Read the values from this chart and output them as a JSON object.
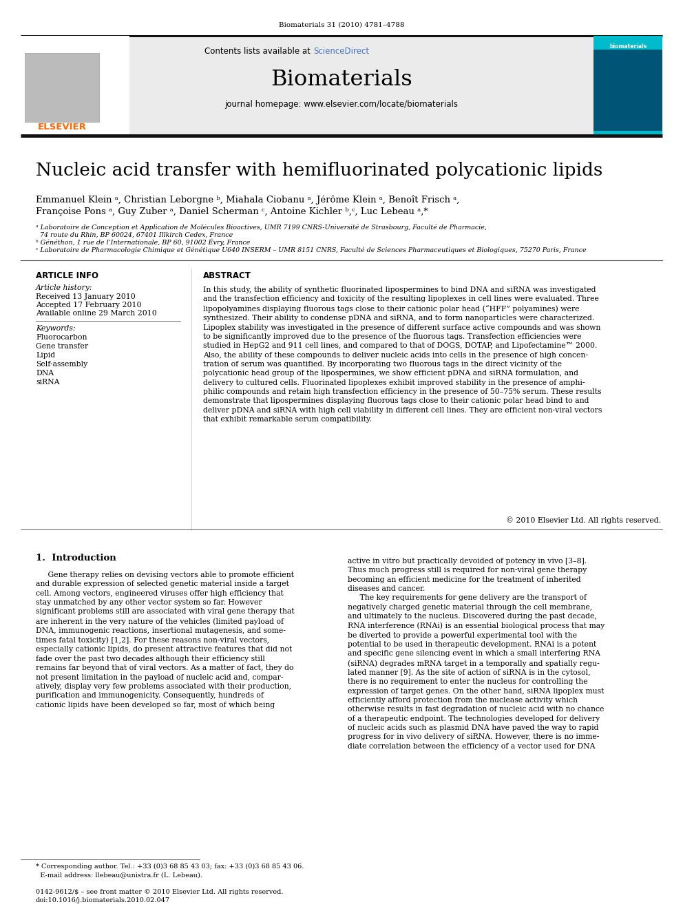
{
  "journal_ref": "Biomaterials 31 (2010) 4781–4788",
  "contents_line": "Contents lists available at",
  "sciencedirect": "ScienceDirect",
  "journal_name": "Biomaterials",
  "journal_homepage": "journal homepage: www.elsevier.com/locate/biomaterials",
  "title": "Nucleic acid transfer with hemifluorinated polycationic lipids",
  "authors_line1": "Emmanuel Klein ᵃ, Christian Leborgne ᵇ, Miahala Ciobanu ᵃ, Jérôme Klein ᵃ, Benoît Frisch ᵃ,",
  "authors_line2": "Françoise Pons ᵃ, Guy Zuber ᵃ, Daniel Scherman ᶜ, Antoine Kichler ᵇ,ᶜ, Luc Lebeau ᵃ,*",
  "affil_a": "ᵃ Laboratoire de Conception et Application de Molécules Bioactives, UMR 7199 CNRS-Université de Strasbourg, Faculté de Pharmacie,",
  "affil_a2": "  74 route du Rhin, BP 60024, 67401 Illkirch Cedex, France",
  "affil_b": "ᵇ Généthon, 1 rue de l’Internationale, BP 60, 91002 Évry, France",
  "affil_c": "ᶜ Laboratoire de Pharmacologie Chimique et Génétique U640 INSERM – UMR 8151 CNRS, Faculté de Sciences Pharmaceutiques et Biologiques, 75270 Paris, France",
  "article_info_header": "ARTICLE INFO",
  "article_history_header": "Article history:",
  "received": "Received 13 January 2010",
  "accepted": "Accepted 17 February 2010",
  "available": "Available online 29 March 2010",
  "keywords_header": "Keywords:",
  "keywords": [
    "Fluorocarbon",
    "Gene transfer",
    "Lipid",
    "Self-assembly",
    "DNA",
    "siRNA"
  ],
  "abstract_header": "ABSTRACT",
  "abstract_text": "In this study, the ability of synthetic fluorinated lipospermines to bind DNA and siRNA was investigated\nand the transfection efficiency and toxicity of the resulting lipoplexes in cell lines were evaluated. Three\nlipopolyamines displaying fluorous tags close to their cationic polar head (“HFF” polyamines) were\nsynthesized. Their ability to condense pDNA and siRNA, and to form nanoparticles were characterized.\nLipoplex stability was investigated in the presence of different surface active compounds and was shown\nto be significantly improved due to the presence of the fluorous tags. Transfection efficiencies were\nstudied in HepG2 and 911 cell lines, and compared to that of DOGS, DOTAP, and Lipofectamine™ 2000.\nAlso, the ability of these compounds to deliver nucleic acids into cells in the presence of high concen-\ntration of serum was quantified. By incorporating two fluorous tags in the direct vicinity of the\npolycationic head group of the lipospermines, we show efficient pDNA and siRNA formulation, and\ndelivery to cultured cells. Fluorinated lipoplexes exhibit improved stability in the presence of amphi-\nphilic compounds and retain high transfection efficiency in the presence of 50–75% serum. These results\ndemonstrate that lipospermines displaying fluorous tags close to their cationic polar head bind to and\ndeliver pDNA and siRNA with high cell viability in different cell lines. They are efficient non-viral vectors\nthat exhibit remarkable serum compatibility.",
  "copyright": "© 2010 Elsevier Ltd. All rights reserved.",
  "section1_header": "1.  Introduction",
  "intro_col1_para1": "     Gene therapy relies on devising vectors able to promote efficient\nand durable expression of selected genetic material inside a target\ncell. Among vectors, engineered viruses offer high efficiency that\nstay unmatched by any other vector system so far. However\nsignificant problems still are associated with viral gene therapy that\nare inherent in the very nature of the vehicles (limited payload of\nDNA, immunogenic reactions, insertional mutagenesis, and some-\ntimes fatal toxicity) [1,2]. For these reasons non-viral vectors,\nespecially cationic lipids, do present attractive features that did not\nfade over the past two decades although their efficiency still\nremains far beyond that of viral vectors. As a matter of fact, they do\nnot present limitation in the payload of nucleic acid and, compar-\natively, display very few problems associated with their production,\npurification and immunogenicity. Consequently, hundreds of\ncationic lipids have been developed so far, most of which being",
  "intro_col2_para1": "active in vitro but practically devoided of potency in vivo [3–8].\nThus much progress still is required for non-viral gene therapy\nbecoming an efficient medicine for the treatment of inherited\ndiseases and cancer.\n     The key requirements for gene delivery are the transport of\nnegatively charged genetic material through the cell membrane,\nand ultimately to the nucleus. Discovered during the past decade,\nRNA interference (RNAi) is an essential biological process that may\nbe diverted to provide a powerful experimental tool with the\npotential to be used in therapeutic development. RNAi is a potent\nand specific gene silencing event in which a small interfering RNA\n(siRNA) degrades mRNA target in a temporally and spatially regu-\nlated manner [9]. As the site of action of siRNA is in the cytosol,\nthere is no requirement to enter the nucleus for controlling the\nexpression of target genes. On the other hand, siRNA lipoplex must\nefficiently afford protection from the nuclease activity which\notherwise results in fast degradation of nucleic acid with no chance\nof a therapeutic endpoint. The technologies developed for delivery\nof nucleic acids such as plasmid DNA have paved the way to rapid\nprogress for in vivo delivery of siRNA. However, there is no imme-\ndiate correlation between the efficiency of a vector used for DNA",
  "footnote_line1": "* Corresponding author. Tel.: +33 (0)3 68 85 43 03; fax: +33 (0)3 68 85 43 06.",
  "footnote_line2": "  E-mail address: llebeau@unistra.fr (L. Lebeau).",
  "footer_line1": "0142-9612/$ – see front matter © 2010 Elsevier Ltd. All rights reserved.",
  "footer_line2": "doi:10.1016/j.biomaterials.2010.02.047",
  "elsevier_color": "#FF6600",
  "sciencedirect_color": "#4472C4",
  "header_bg": "#EBEBEB",
  "thick_bar_color": "#111111"
}
